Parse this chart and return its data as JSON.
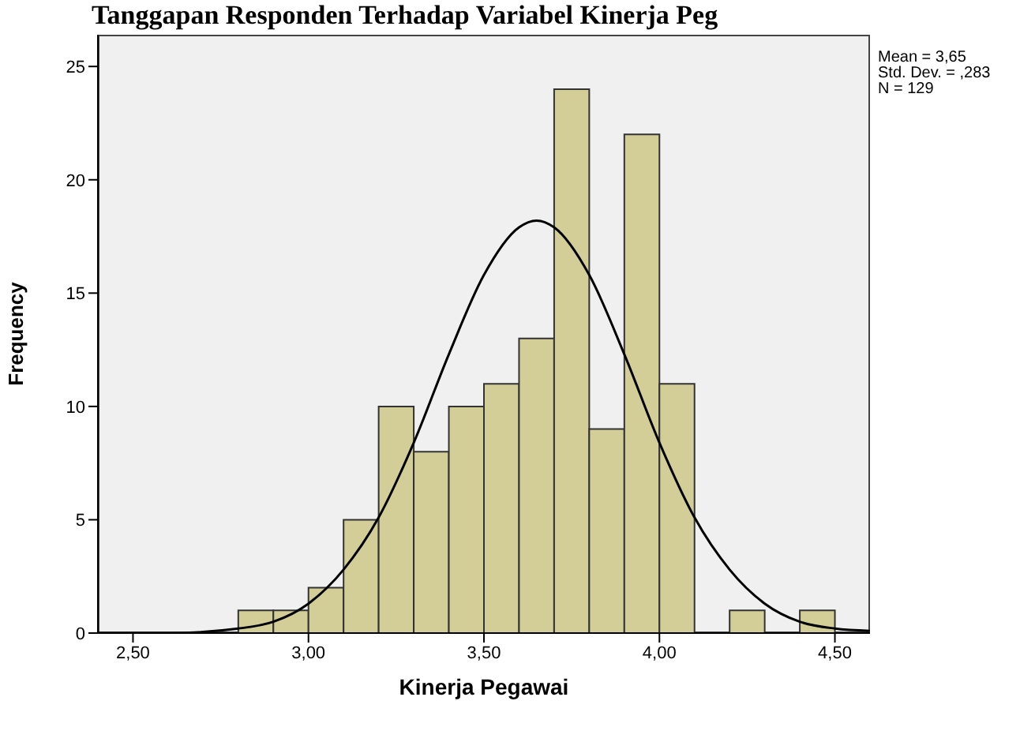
{
  "chart_data": {
    "type": "histogram",
    "title": "Tanggapan Responden Terhadap Variabel Kinerja Peg",
    "xlabel": "Kinerja Pegawai",
    "ylabel": "Frequency",
    "bins": [
      2.8,
      2.9,
      3.0,
      3.1,
      3.2,
      3.3,
      3.4,
      3.5,
      3.6,
      3.7,
      3.8,
      3.9,
      4.0,
      4.1,
      4.2,
      4.3,
      4.4,
      4.5
    ],
    "values": [
      1,
      1,
      2,
      5,
      10,
      8,
      10,
      11,
      13,
      24,
      9,
      22,
      11,
      0,
      1,
      0,
      1
    ],
    "color": "#d3ce97",
    "series": [
      {
        "type": "line",
        "color": "#000000",
        "x": [
          2.4,
          2.6,
          2.8,
          2.9,
          3.0,
          3.1,
          3.2,
          3.3,
          3.4,
          3.5,
          3.6,
          3.65,
          3.7,
          3.8,
          3.9,
          4.0,
          4.1,
          4.2,
          4.3,
          4.4,
          4.5,
          4.6
        ],
        "values": [
          0,
          0,
          0.2,
          0.5,
          1.3,
          2.8,
          5.1,
          8.4,
          12.3,
          15.8,
          17.9,
          18.2,
          17.9,
          15.8,
          12.3,
          8.4,
          5.1,
          2.8,
          1.3,
          0.5,
          0.2,
          0.1
        ]
      }
    ],
    "xlim": [
      2.4,
      4.6
    ],
    "xticks": [
      {
        "value": 2.5,
        "label": "2,50"
      },
      {
        "value": 3.0,
        "label": "3,00"
      },
      {
        "value": 3.5,
        "label": "3,50"
      },
      {
        "value": 4.0,
        "label": "4,00"
      },
      {
        "value": 4.5,
        "label": "4,50"
      }
    ],
    "ylim": [
      0,
      26.4
    ],
    "yticks": [
      0,
      5,
      10,
      15,
      20,
      25
    ],
    "annotations": [
      "Mean = 3,65",
      "Std. Dev. = ,283",
      "N = 129"
    ]
  }
}
